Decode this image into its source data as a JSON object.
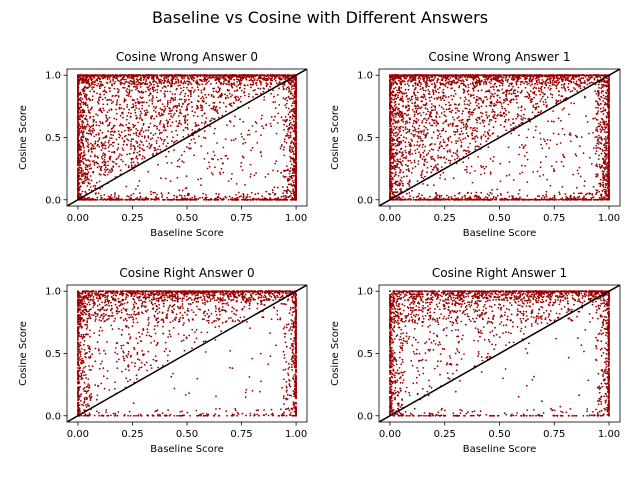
{
  "figure": {
    "suptitle": "Baseline vs Cosine with Different Answers"
  },
  "chart_data": [
    {
      "type": "scatter",
      "title": "Cosine Wrong Answer 0",
      "xlabel": "Baseline Score",
      "ylabel": "Cosine Score",
      "xlim": [
        -0.05,
        1.05
      ],
      "ylim": [
        -0.05,
        1.05
      ],
      "xticks": [
        "0.00",
        "0.25",
        "0.50",
        "0.75",
        "1.00"
      ],
      "yticks": [
        "0.0",
        "0.5",
        "1.0"
      ],
      "point_color": "#990000",
      "line_color": "#000000",
      "reference_line": "y = x",
      "distribution": "dense band along y=1 and x=0; dense near y=0 and x=1; scattered points elsewhere, fewer below diagonal",
      "sample_points": [
        [
          0.0,
          1.0
        ],
        [
          0.1,
          0.95
        ],
        [
          0.25,
          0.8
        ],
        [
          0.5,
          0.9
        ],
        [
          0.75,
          1.0
        ],
        [
          1.0,
          1.0
        ],
        [
          0.05,
          0.4
        ],
        [
          0.3,
          0.6
        ],
        [
          0.6,
          0.3
        ],
        [
          0.9,
          0.1
        ],
        [
          1.0,
          0.0
        ],
        [
          0.5,
          0.0
        ]
      ]
    },
    {
      "type": "scatter",
      "title": "Cosine Wrong Answer 1",
      "xlabel": "Baseline Score",
      "ylabel": "Cosine Score",
      "xlim": [
        -0.05,
        1.05
      ],
      "ylim": [
        -0.05,
        1.05
      ],
      "xticks": [
        "0.00",
        "0.25",
        "0.50",
        "0.75",
        "1.00"
      ],
      "yticks": [
        "0.0",
        "0.5",
        "1.0"
      ],
      "point_color": "#990000",
      "line_color": "#000000",
      "reference_line": "y = x",
      "distribution": "dense band along y=1 and x=0; dense near y=0 and x=1; scattered points elsewhere",
      "sample_points": [
        [
          0.0,
          1.0
        ],
        [
          0.15,
          0.9
        ],
        [
          0.3,
          0.85
        ],
        [
          0.6,
          0.95
        ],
        [
          1.0,
          1.0
        ],
        [
          0.05,
          0.3
        ],
        [
          0.4,
          0.5
        ],
        [
          0.7,
          0.2
        ],
        [
          1.0,
          0.0
        ],
        [
          0.9,
          0.05
        ]
      ]
    },
    {
      "type": "scatter",
      "title": "Cosine Right Answer 0",
      "xlabel": "Baseline Score",
      "ylabel": "Cosine Score",
      "xlim": [
        -0.05,
        1.05
      ],
      "ylim": [
        -0.05,
        1.05
      ],
      "xticks": [
        "0.00",
        "0.25",
        "0.50",
        "0.75",
        "1.00"
      ],
      "yticks": [
        "0.0",
        "0.5",
        "1.0"
      ],
      "point_color": "#990000",
      "line_color": "#000000",
      "reference_line": "y = x",
      "distribution": "concentrated near y=1 above the diagonal; vertical bands at x=0 and x=1; sparse below diagonal",
      "sample_points": [
        [
          0.0,
          1.0
        ],
        [
          0.3,
          0.95
        ],
        [
          0.6,
          0.95
        ],
        [
          1.0,
          1.0
        ],
        [
          0.1,
          0.5
        ],
        [
          0.35,
          0.6
        ],
        [
          0.8,
          0.2
        ],
        [
          1.0,
          0.05
        ]
      ]
    },
    {
      "type": "scatter",
      "title": "Cosine Right Answer 1",
      "xlabel": "Baseline Score",
      "ylabel": "Cosine Score",
      "xlim": [
        -0.05,
        1.05
      ],
      "ylim": [
        -0.05,
        1.05
      ],
      "xticks": [
        "0.00",
        "0.25",
        "0.50",
        "0.75",
        "1.00"
      ],
      "yticks": [
        "0.0",
        "0.5",
        "1.0"
      ],
      "point_color": "#990000",
      "line_color": "#000000",
      "reference_line": "y = x",
      "distribution": "band along y=1; vertical bands at x=0 and x=1; sparse interior points",
      "sample_points": [
        [
          0.0,
          1.0
        ],
        [
          0.4,
          0.95
        ],
        [
          0.8,
          0.95
        ],
        [
          1.0,
          1.0
        ],
        [
          0.05,
          0.2
        ],
        [
          0.3,
          0.5
        ],
        [
          0.6,
          0.7
        ],
        [
          1.0,
          0.0
        ]
      ]
    }
  ]
}
